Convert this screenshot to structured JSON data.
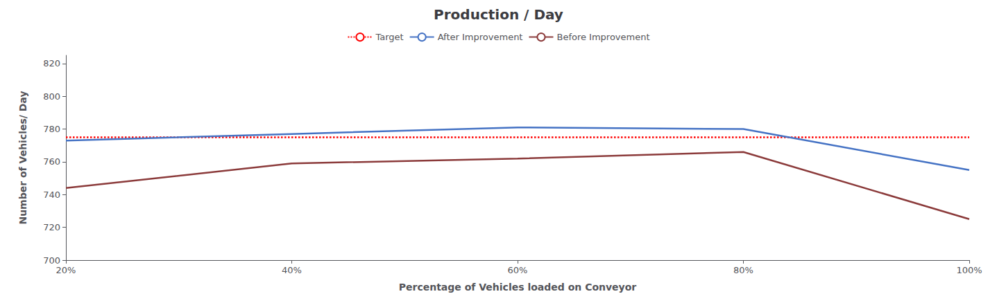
{
  "chart_data": {
    "type": "line",
    "title": "Production / Day",
    "x_label": "Percentage of Vehicles loaded on Conveyor",
    "y_label": "Number of Vehicles/ Day",
    "x": [
      20,
      40,
      60,
      80,
      100
    ],
    "xlim": [
      20,
      100
    ],
    "xticks": [
      {
        "value": 20,
        "label": "20%"
      },
      {
        "value": 40,
        "label": "40%"
      },
      {
        "value": 60,
        "label": "60%"
      },
      {
        "value": 80,
        "label": "80%"
      },
      {
        "value": 100,
        "label": "100%"
      }
    ],
    "ylim": [
      700,
      825
    ],
    "yticks": [
      700,
      720,
      740,
      760,
      780,
      800,
      820
    ],
    "grid": false,
    "legend": "top",
    "series": [
      {
        "name": "Target",
        "color": "#ff0000",
        "line_style": "dotted",
        "values": [
          775,
          775,
          775,
          775,
          775
        ]
      },
      {
        "name": "After Improvement",
        "color": "#4472c4",
        "line_style": "solid",
        "values": [
          773,
          777,
          781,
          780,
          755
        ]
      },
      {
        "name": "Before Improvement",
        "color": "#8b3a3a",
        "line_style": "solid",
        "values": [
          744,
          759,
          762,
          766,
          725
        ]
      }
    ]
  }
}
